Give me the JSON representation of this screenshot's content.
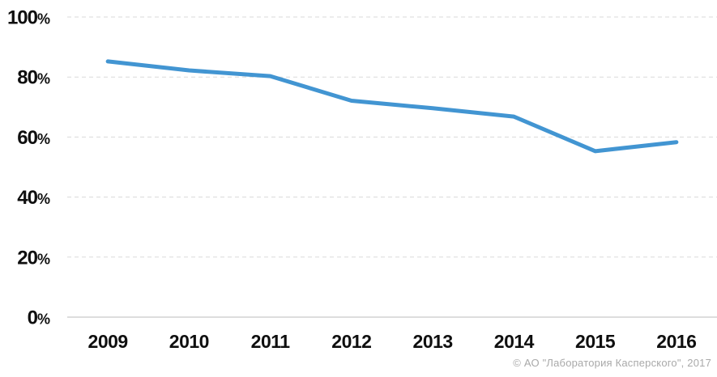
{
  "chart_data": {
    "type": "line",
    "title": "",
    "categories": [
      "2009",
      "2010",
      "2011",
      "2012",
      "2013",
      "2014",
      "2015",
      "2016"
    ],
    "series": [
      {
        "values": [
          85.2,
          82.2,
          80.3,
          72.1,
          69.6,
          66.8,
          55.3,
          58.3
        ],
        "color": "#4295d2"
      }
    ],
    "ylim": [
      0,
      100
    ],
    "yticks": [
      0,
      20,
      40,
      60,
      80,
      100
    ],
    "ytick_labels": [
      "0%",
      "20%",
      "40%",
      "60%",
      "80%",
      "100%"
    ],
    "grid": "horizontal-dashed",
    "legend": "none"
  },
  "footer": {
    "copyright": "© АО \"Лаборатория Касперского\", 2017"
  },
  "colors": {
    "line": "#4295d2",
    "gridline": "#dadada",
    "axis": "#d2d2d2",
    "tick_label": "#0f0f0f",
    "copyright": "#a9a9a9",
    "background": "#ffffff"
  }
}
